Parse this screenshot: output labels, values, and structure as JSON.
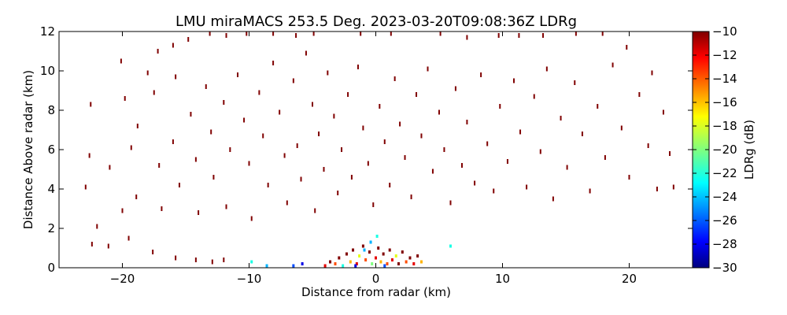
{
  "chart_data": {
    "type": "heatmap",
    "title": "LMU miraMACS 253.5 Deg. 2023-03-20T09:08:36Z  LDRg",
    "xlabel": "Distance from radar (km)",
    "ylabel": "Distance Above radar  (km)",
    "xlim": [
      -25,
      25
    ],
    "ylim": [
      0,
      12
    ],
    "x_ticks": [
      -20,
      -10,
      0,
      10,
      20
    ],
    "y_ticks": [
      0,
      2,
      4,
      6,
      8,
      10,
      12
    ],
    "grid": false,
    "colorbar": {
      "label": "LDRg (dB)",
      "range": [
        -30,
        -10
      ],
      "ticks": [
        -10,
        -12,
        -14,
        -16,
        -18,
        -20,
        -22,
        -24,
        -26,
        -28,
        -30
      ],
      "colormap": "jet"
    },
    "description_of_field": "Sparse radar returns of LDRg; most scattered points near -10 dB (dark red) along concentric range rings; dense mixed returns near ground between x=-4 and x=4 km.",
    "points": [
      [
        -22.5,
        8.3,
        -10
      ],
      [
        -20.1,
        10.5,
        -10
      ],
      [
        -18.0,
        9.9,
        -10
      ],
      [
        -17.2,
        11.0,
        -10
      ],
      [
        -16.0,
        11.3,
        -10
      ],
      [
        -14.8,
        11.6,
        -10
      ],
      [
        -13.1,
        11.9,
        -10
      ],
      [
        -11.8,
        11.8,
        -10
      ],
      [
        -10.2,
        11.9,
        -10
      ],
      [
        -8.1,
        11.9,
        -10
      ],
      [
        -6.3,
        11.8,
        -10
      ],
      [
        -4.9,
        11.9,
        -10
      ],
      [
        -1.2,
        11.9,
        -10
      ],
      [
        1.2,
        11.9,
        -10
      ],
      [
        5.1,
        11.9,
        -10
      ],
      [
        7.2,
        11.7,
        -10
      ],
      [
        9.7,
        11.8,
        -10
      ],
      [
        11.3,
        11.8,
        -10
      ],
      [
        13.2,
        11.8,
        -10
      ],
      [
        15.8,
        11.9,
        -10
      ],
      [
        17.9,
        11.9,
        -10
      ],
      [
        19.8,
        11.2,
        -10
      ],
      [
        21.8,
        9.9,
        -10
      ],
      [
        23.2,
        5.8,
        -10
      ],
      [
        23.5,
        4.1,
        -10
      ],
      [
        -22.9,
        4.1,
        -10
      ],
      [
        -22.6,
        5.7,
        -10
      ],
      [
        -22.0,
        2.1,
        -10
      ],
      [
        -21.0,
        5.1,
        -10
      ],
      [
        -20.0,
        2.9,
        -10
      ],
      [
        -19.8,
        8.6,
        -10
      ],
      [
        -19.3,
        6.1,
        -10
      ],
      [
        -18.9,
        3.6,
        -10
      ],
      [
        -19.5,
        1.5,
        -10
      ],
      [
        -18.8,
        7.2,
        -10
      ],
      [
        -17.5,
        8.9,
        -10
      ],
      [
        -17.1,
        5.2,
        -10
      ],
      [
        -16.9,
        3.0,
        -10
      ],
      [
        -16.0,
        6.4,
        -10
      ],
      [
        -15.8,
        9.7,
        -10
      ],
      [
        -15.5,
        4.2,
        -10
      ],
      [
        -14.6,
        7.8,
        -10
      ],
      [
        -14.2,
        5.5,
        -10
      ],
      [
        -14.0,
        2.8,
        -10
      ],
      [
        -13.4,
        9.2,
        -10
      ],
      [
        -13.0,
        6.9,
        -10
      ],
      [
        -12.8,
        4.6,
        -10
      ],
      [
        -12.0,
        8.4,
        -10
      ],
      [
        -11.8,
        3.1,
        -10
      ],
      [
        -11.5,
        6.0,
        -10
      ],
      [
        -10.9,
        9.8,
        -10
      ],
      [
        -10.4,
        7.5,
        -10
      ],
      [
        -10.0,
        5.3,
        -10
      ],
      [
        -9.8,
        2.5,
        -10
      ],
      [
        -9.2,
        8.9,
        -10
      ],
      [
        -8.9,
        6.7,
        -10
      ],
      [
        -8.5,
        4.2,
        -10
      ],
      [
        -8.1,
        10.4,
        -10
      ],
      [
        -7.6,
        7.9,
        -10
      ],
      [
        -7.2,
        5.7,
        -10
      ],
      [
        -7.0,
        3.3,
        -10
      ],
      [
        -6.5,
        9.5,
        -10
      ],
      [
        -6.2,
        6.2,
        -10
      ],
      [
        -5.9,
        4.5,
        -10
      ],
      [
        -5.5,
        10.9,
        -10
      ],
      [
        -5.0,
        8.3,
        -10
      ],
      [
        -4.8,
        2.9,
        -10
      ],
      [
        -4.5,
        6.8,
        -10
      ],
      [
        -4.1,
        5.0,
        -10
      ],
      [
        -3.8,
        9.9,
        -10
      ],
      [
        -3.3,
        7.7,
        -10
      ],
      [
        -3.0,
        3.8,
        -10
      ],
      [
        -2.7,
        6.0,
        -10
      ],
      [
        -2.2,
        8.8,
        -10
      ],
      [
        -1.9,
        4.6,
        -10
      ],
      [
        -1.4,
        10.2,
        -10
      ],
      [
        -1.0,
        7.1,
        -10
      ],
      [
        -0.6,
        5.3,
        -10
      ],
      [
        -0.2,
        3.2,
        -10
      ],
      [
        0.3,
        8.2,
        -10
      ],
      [
        0.7,
        6.4,
        -10
      ],
      [
        1.1,
        4.2,
        -10
      ],
      [
        1.5,
        9.6,
        -10
      ],
      [
        1.9,
        7.3,
        -10
      ],
      [
        2.3,
        5.6,
        -10
      ],
      [
        2.8,
        3.6,
        -10
      ],
      [
        3.2,
        8.8,
        -10
      ],
      [
        3.6,
        6.7,
        -10
      ],
      [
        4.1,
        10.1,
        -10
      ],
      [
        4.5,
        4.9,
        -10
      ],
      [
        5.0,
        7.9,
        -10
      ],
      [
        5.4,
        6.0,
        -10
      ],
      [
        5.9,
        3.3,
        -10
      ],
      [
        6.3,
        9.1,
        -10
      ],
      [
        6.8,
        5.2,
        -10
      ],
      [
        7.2,
        7.4,
        -10
      ],
      [
        7.8,
        4.3,
        -10
      ],
      [
        8.3,
        9.8,
        -10
      ],
      [
        8.8,
        6.3,
        -10
      ],
      [
        9.3,
        3.9,
        -10
      ],
      [
        9.8,
        8.2,
        -10
      ],
      [
        10.4,
        5.4,
        -10
      ],
      [
        10.9,
        9.5,
        -10
      ],
      [
        11.4,
        6.9,
        -10
      ],
      [
        11.9,
        4.1,
        -10
      ],
      [
        12.5,
        8.7,
        -10
      ],
      [
        13.0,
        5.9,
        -10
      ],
      [
        13.5,
        10.1,
        -10
      ],
      [
        14.0,
        3.5,
        -10
      ],
      [
        14.6,
        7.6,
        -10
      ],
      [
        15.1,
        5.1,
        -10
      ],
      [
        15.7,
        9.4,
        -10
      ],
      [
        16.3,
        6.8,
        -10
      ],
      [
        16.9,
        3.9,
        -10
      ],
      [
        17.5,
        8.2,
        -10
      ],
      [
        18.1,
        5.6,
        -10
      ],
      [
        18.7,
        10.3,
        -10
      ],
      [
        19.4,
        7.1,
        -10
      ],
      [
        20.0,
        4.6,
        -10
      ],
      [
        20.8,
        8.8,
        -10
      ],
      [
        21.5,
        6.2,
        -10
      ],
      [
        22.2,
        4.0,
        -10
      ],
      [
        22.7,
        7.9,
        -10
      ],
      [
        -22.4,
        1.2,
        -10
      ],
      [
        -21.1,
        1.1,
        -10
      ],
      [
        -17.6,
        0.8,
        -10
      ],
      [
        -15.8,
        0.5,
        -10
      ],
      [
        -14.2,
        0.4,
        -10
      ],
      [
        -12.9,
        0.3,
        -10
      ],
      [
        -12.0,
        0.4,
        -10
      ]
    ],
    "near_ground": [
      [
        -4.0,
        0.1,
        -12
      ],
      [
        -3.6,
        0.3,
        -10
      ],
      [
        -3.2,
        0.2,
        -14
      ],
      [
        -2.9,
        0.5,
        -10
      ],
      [
        -2.6,
        0.1,
        -22
      ],
      [
        -2.3,
        0.7,
        -10
      ],
      [
        -2.0,
        0.3,
        -16
      ],
      [
        -1.8,
        0.9,
        -10
      ],
      [
        -1.5,
        0.2,
        -12
      ],
      [
        -1.3,
        0.6,
        -18
      ],
      [
        -1.0,
        1.1,
        -10
      ],
      [
        -0.8,
        0.4,
        -14
      ],
      [
        -0.5,
        0.8,
        -10
      ],
      [
        -0.3,
        0.2,
        -20
      ],
      [
        0.0,
        0.5,
        -12
      ],
      [
        0.2,
        1.0,
        -10
      ],
      [
        0.4,
        0.3,
        -16
      ],
      [
        0.6,
        0.7,
        -10
      ],
      [
        0.9,
        0.2,
        -14
      ],
      [
        1.1,
        0.9,
        -10
      ],
      [
        1.3,
        0.4,
        -12
      ],
      [
        1.6,
        0.6,
        -18
      ],
      [
        1.8,
        0.2,
        -10
      ],
      [
        2.1,
        0.8,
        -10
      ],
      [
        2.4,
        0.3,
        -14
      ],
      [
        2.7,
        0.5,
        -10
      ],
      [
        3.0,
        0.2,
        -12
      ],
      [
        3.3,
        0.6,
        -10
      ],
      [
        3.6,
        0.3,
        -16
      ],
      [
        -0.4,
        1.3,
        -24
      ],
      [
        0.1,
        1.6,
        -22
      ],
      [
        -0.9,
        0.9,
        -24
      ],
      [
        0.7,
        0.1,
        -26
      ],
      [
        -1.6,
        0.1,
        -28
      ],
      [
        5.9,
        1.1,
        -22
      ],
      [
        -8.6,
        0.1,
        -24
      ],
      [
        -9.8,
        0.3,
        -22
      ],
      [
        -6.5,
        0.1,
        -26
      ],
      [
        -5.8,
        0.2,
        -28
      ]
    ]
  }
}
